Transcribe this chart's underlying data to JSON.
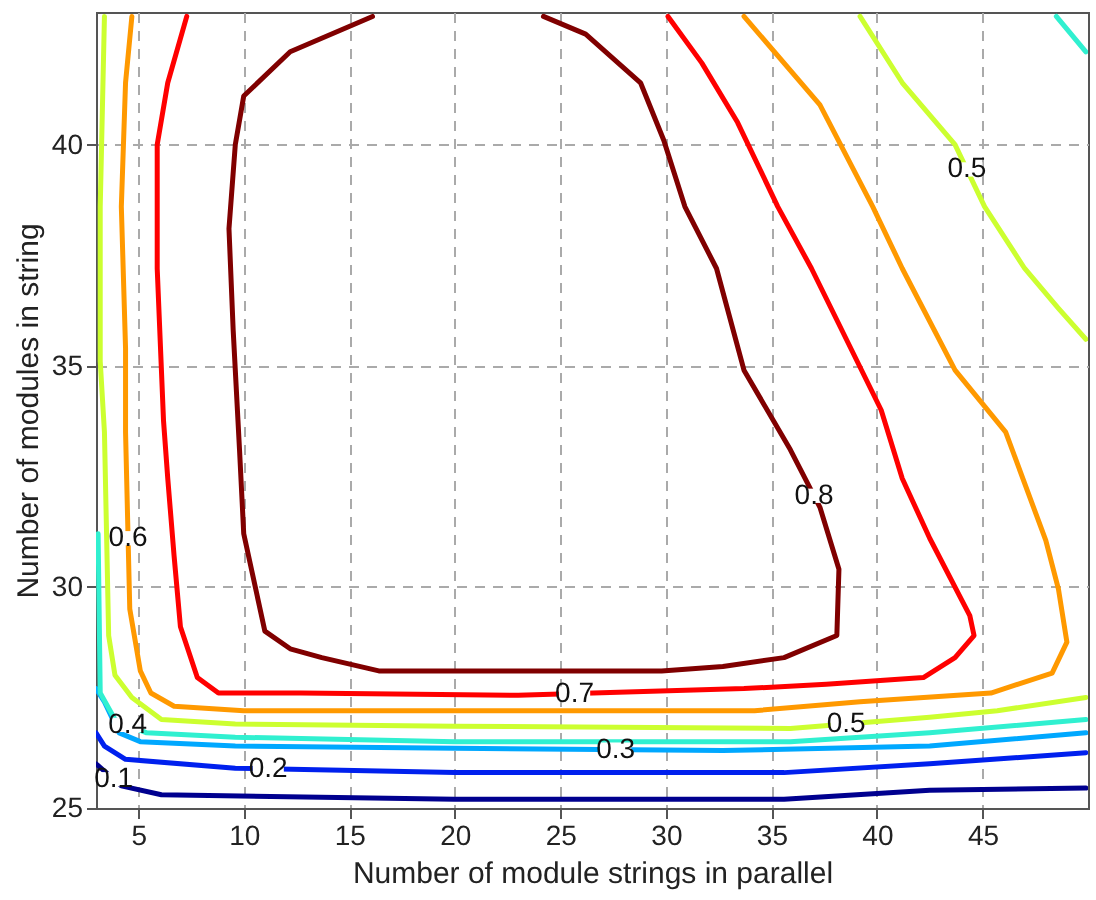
{
  "chart_data": {
    "type": "line",
    "xlabel": "Number of module strings in parallel",
    "ylabel": "Number of modules in string",
    "xlim": [
      3,
      50
    ],
    "ylim": [
      25,
      43
    ],
    "xticks": [
      5,
      10,
      15,
      20,
      25,
      30,
      35,
      40,
      45
    ],
    "yticks": [
      25,
      30,
      35,
      40
    ],
    "grid": true,
    "series": [
      {
        "name": "0.1",
        "color": "#00008f",
        "x": [
          3.0,
          3.6,
          4.2,
          6.1,
          20.0,
          35.6,
          42.5,
          49.9
        ],
        "values": [
          26.0,
          25.75,
          25.5,
          25.3,
          25.2,
          25.2,
          25.4,
          25.45
        ]
      },
      {
        "name": "0.2",
        "color": "#0020ee",
        "x": [
          3.0,
          3.4,
          4.4,
          9.6,
          20.0,
          35.6,
          42.5,
          49.9
        ],
        "values": [
          26.7,
          26.4,
          26.1,
          25.9,
          25.8,
          25.8,
          26.0,
          26.25
        ]
      },
      {
        "name": "0.3",
        "color": "#00a8ff",
        "x": [
          3.0,
          3.4,
          4.1,
          5.1,
          9.6,
          20.0,
          32.7,
          42.5,
          49.9
        ],
        "values": [
          27.7,
          27.4,
          26.7,
          26.5,
          26.4,
          26.35,
          26.3,
          26.4,
          26.7
        ]
      },
      {
        "name": "0.4",
        "color": "#30f0d0",
        "x": [
          3.1,
          3.2,
          3.9,
          5.4,
          9.6,
          20.0,
          35.9,
          42.5,
          49.9
        ],
        "values": [
          31.2,
          27.6,
          27.0,
          26.7,
          26.6,
          26.5,
          26.5,
          26.7,
          27.0
        ]
      },
      {
        "color": "#30f0d0",
        "x": [
          48.5,
          49.9
        ],
        "values": [
          42.9,
          42.1
        ]
      },
      {
        "name": "0.5",
        "color": "#ccff30",
        "x": [
          3.4,
          3.2,
          3.2,
          3.4,
          3.6,
          3.9,
          4.7,
          6.1,
          9.6,
          20.0,
          35.9,
          42.5,
          45.7,
          49.9
        ],
        "values": [
          42.9,
          38.6,
          35.1,
          33.5,
          28.9,
          28.0,
          27.5,
          27.0,
          26.9,
          26.85,
          26.8,
          27.05,
          27.2,
          27.5
        ]
      },
      {
        "name": "0.5",
        "color": "#ccff30",
        "x": [
          39.2,
          41.2,
          43.7,
          45.1,
          47.0,
          48.6,
          49.9
        ],
        "values": [
          42.9,
          41.4,
          40.0,
          38.6,
          37.2,
          36.3,
          35.6
        ]
      },
      {
        "name": "0.6",
        "color": "#ff9900",
        "x": [
          4.7,
          4.4,
          4.2,
          4.4,
          4.4,
          4.6,
          5.1,
          5.6,
          6.7,
          10.0,
          20.0,
          34.2,
          39.2,
          45.4,
          48.3,
          49.0,
          48.6,
          48.0,
          46.1,
          43.7,
          41.2,
          39.8,
          37.3,
          33.7
        ],
        "values": [
          42.9,
          41.4,
          38.6,
          35.4,
          33.5,
          29.5,
          28.1,
          27.6,
          27.3,
          27.2,
          27.2,
          27.2,
          27.4,
          27.6,
          28.05,
          28.75,
          29.95,
          31.05,
          33.5,
          34.9,
          37.2,
          38.6,
          40.9,
          42.9
        ]
      },
      {
        "name": "0.7",
        "color": "#ff0000",
        "x": [
          7.3,
          6.4,
          5.9,
          5.9,
          6.2,
          6.4,
          6.7,
          7.0,
          7.8,
          8.8,
          12.7,
          23.0,
          33.7,
          37.6,
          42.2,
          43.7,
          44.6,
          44.4,
          42.5,
          41.2,
          40.2,
          36.9,
          35.3,
          33.4,
          31.7,
          30.1
        ],
        "values": [
          42.9,
          41.4,
          40.0,
          37.2,
          33.75,
          32.45,
          30.7,
          29.1,
          27.95,
          27.6,
          27.6,
          27.55,
          27.7,
          27.8,
          27.95,
          28.4,
          28.9,
          29.35,
          31.1,
          32.45,
          34.0,
          37.2,
          38.6,
          40.5,
          41.85,
          42.9
        ]
      },
      {
        "name": "0.8",
        "color": "#800000",
        "x": [
          16.1,
          12.2,
          10.0,
          9.6,
          9.3,
          9.5,
          9.8,
          10.0,
          11.0,
          12.2,
          13.7,
          16.4,
          23.0,
          29.8,
          32.7,
          35.6,
          38.1,
          38.2,
          37.3,
          35.9,
          33.7,
          32.4,
          30.9,
          29.9,
          28.8,
          26.2,
          24.2
        ],
        "values": [
          42.9,
          42.1,
          41.1,
          40.0,
          38.1,
          35.8,
          33.1,
          31.2,
          29.0,
          28.6,
          28.4,
          28.1,
          28.1,
          28.1,
          28.2,
          28.4,
          28.9,
          30.4,
          31.8,
          33.1,
          34.9,
          37.2,
          38.6,
          40.1,
          41.4,
          42.5,
          42.9
        ]
      }
    ]
  }
}
